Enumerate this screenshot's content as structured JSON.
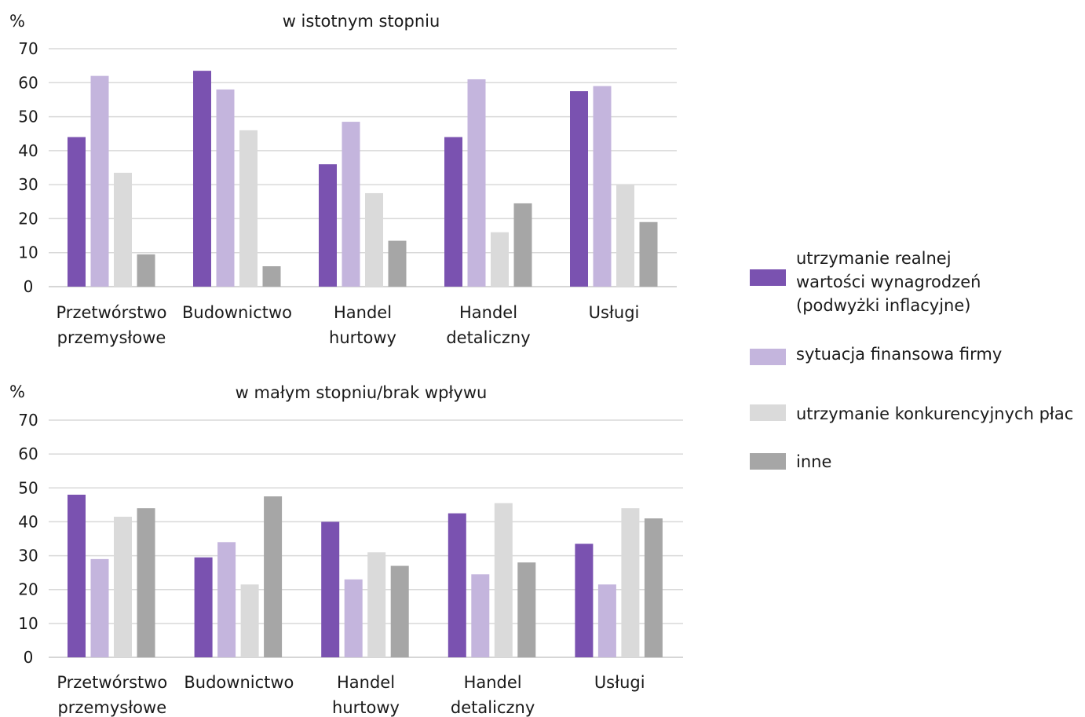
{
  "chart_data": [
    {
      "type": "bar",
      "title": "w istotnym stopniu",
      "ylabel": "%",
      "ylim": [
        0,
        70
      ],
      "yticks": [
        0,
        10,
        20,
        30,
        40,
        50,
        60,
        70
      ],
      "grid": true,
      "categories": [
        [
          "Przetwórstwo",
          "przemysłowe"
        ],
        [
          "Budownictwo"
        ],
        [
          "Handel",
          "hurtowy"
        ],
        [
          "Handel",
          "detaliczny"
        ],
        [
          "Usługi"
        ]
      ],
      "series": [
        {
          "name": "utrzymanie realnej wartości wynagrodzeń (podwyżki inflacyjne)",
          "values": [
            44,
            63.5,
            36,
            44,
            57.5
          ]
        },
        {
          "name": "sytuacja finansowa firmy",
          "values": [
            62,
            58,
            48.5,
            61,
            59
          ]
        },
        {
          "name": "utrzymanie konkurencyjnych płac",
          "values": [
            33.5,
            46,
            27.5,
            16,
            30
          ]
        },
        {
          "name": "inne",
          "values": [
            9.5,
            6,
            13.5,
            24.5,
            19
          ]
        }
      ]
    },
    {
      "type": "bar",
      "title": "w małym stopniu/brak wpływu",
      "ylabel": "%",
      "ylim": [
        0,
        70
      ],
      "yticks": [
        0,
        10,
        20,
        30,
        40,
        50,
        60,
        70
      ],
      "grid": true,
      "categories": [
        [
          "Przetwórstwo",
          "przemysłowe"
        ],
        [
          "Budownictwo"
        ],
        [
          "Handel",
          "hurtowy"
        ],
        [
          "Handel",
          "detaliczny"
        ],
        [
          "Usługi"
        ]
      ],
      "series": [
        {
          "name": "utrzymanie realnej wartości wynagrodzeń (podwyżki inflacyjne)",
          "values": [
            48,
            29.5,
            40,
            42.5,
            33.5
          ]
        },
        {
          "name": "sytuacja finansowa firmy",
          "values": [
            29,
            34,
            23,
            24.5,
            21.5
          ]
        },
        {
          "name": "utrzymanie konkurencyjnych płac",
          "values": [
            41.5,
            21.5,
            31,
            45.5,
            44
          ]
        },
        {
          "name": "inne",
          "values": [
            44,
            47.5,
            27,
            28,
            41
          ]
        }
      ]
    }
  ],
  "legend": {
    "placement": "right",
    "items": [
      {
        "lines": [
          "utrzymanie realnej",
          "wartości wynagrodzeń",
          "(podwyżki inflacyjne)"
        ],
        "color": "#7a52b0"
      },
      {
        "lines": [
          "sytuacja finansowa firmy"
        ],
        "color": "#c4b5dd"
      },
      {
        "lines": [
          "utrzymanie konkurencyjnych płac"
        ],
        "color": "#dadada"
      },
      {
        "lines": [
          "inne"
        ],
        "color": "#a6a6a6"
      }
    ]
  },
  "colors": [
    "#7a52b0",
    "#c4b5dd",
    "#dadada",
    "#a6a6a6"
  ]
}
